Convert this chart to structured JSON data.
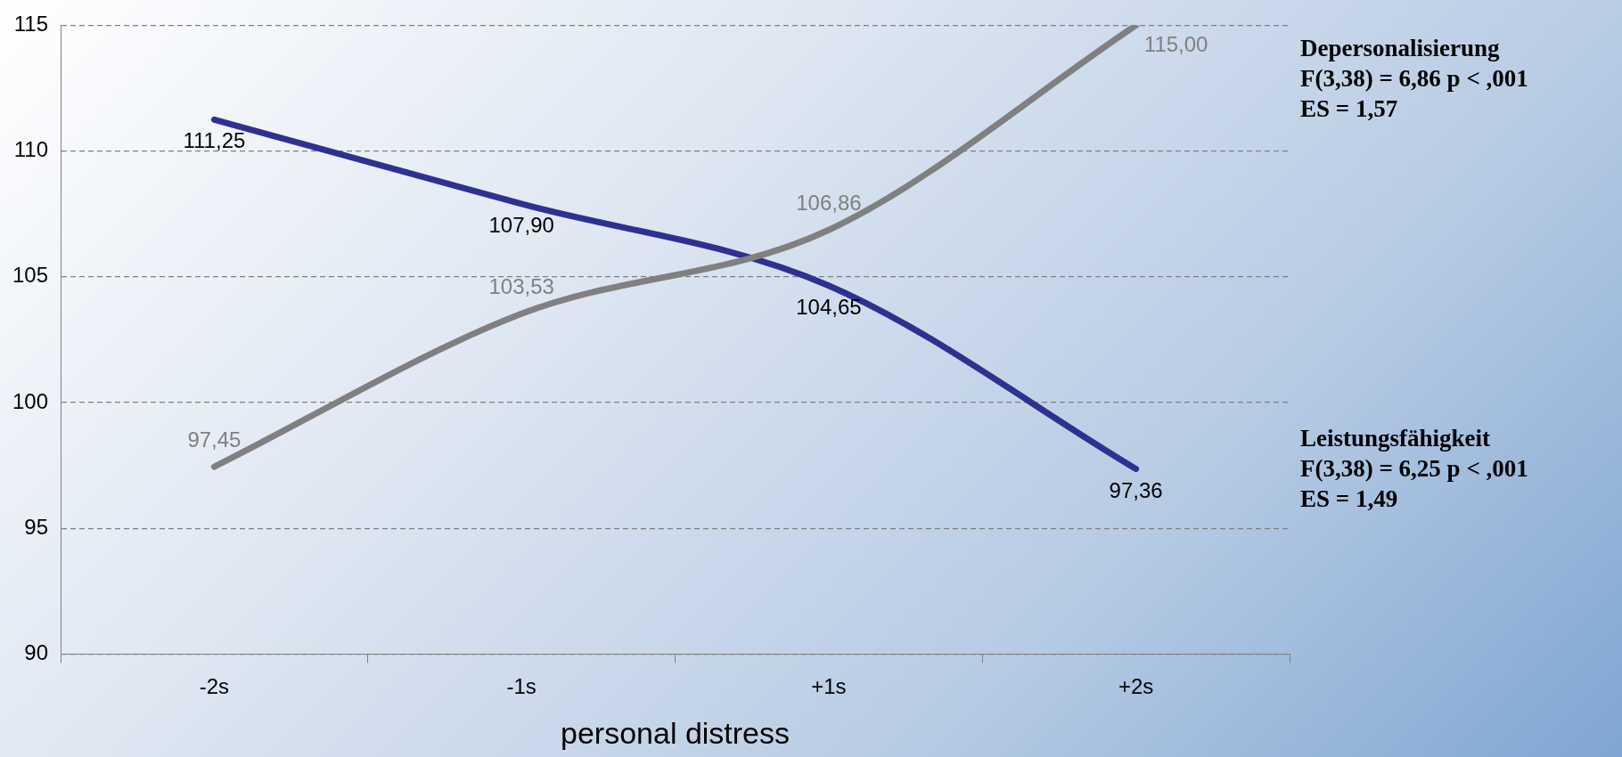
{
  "chart_data": {
    "type": "line",
    "xlabel": "personal distress",
    "categories": [
      "-2s",
      "-1s",
      "+1s",
      "+2s"
    ],
    "series": [
      {
        "color": "#808080",
        "values": [
          97.45,
          103.53,
          106.86,
          115.0
        ],
        "value_labels": [
          "97,45",
          "103,53",
          "106,86",
          "115,00"
        ]
      },
      {
        "color": "#2e3192",
        "values": [
          111.25,
          107.9,
          104.65,
          97.36
        ],
        "value_labels": [
          "111,25",
          "107,90",
          "104,65",
          "97,36"
        ]
      }
    ],
    "ylim": [
      90,
      115
    ],
    "yticks": [
      90,
      95,
      100,
      105,
      110,
      115
    ],
    "grid": "y",
    "legend": false,
    "marker": "none",
    "line_style": "solid",
    "annotations": [
      "Depersonalisierung\nF(3,38) = 6,86 p < ,001\nES = 1,57",
      "Leistungsfähigkeit\nF(3,38) = 6,25 p < ,001\nES = 1,49"
    ]
  }
}
